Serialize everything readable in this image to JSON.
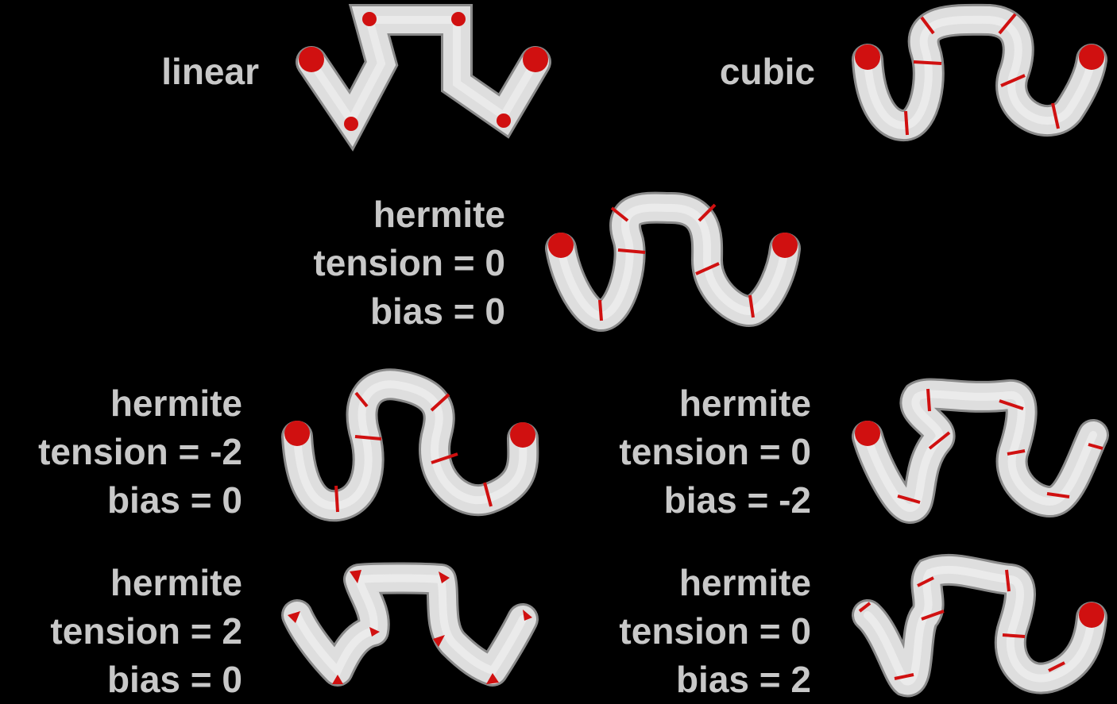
{
  "panels": [
    {
      "id": "linear",
      "lines": [
        "linear"
      ]
    },
    {
      "id": "cubic",
      "lines": [
        "cubic"
      ]
    },
    {
      "id": "hermite-t0-b0",
      "lines": [
        "hermite",
        "tension = 0",
        "bias = 0"
      ]
    },
    {
      "id": "hermite-tm2-b0",
      "lines": [
        "hermite",
        "tension = -2",
        "bias = 0"
      ]
    },
    {
      "id": "hermite-t0-bm2",
      "lines": [
        "hermite",
        "tension = 0",
        "bias = -2"
      ]
    },
    {
      "id": "hermite-t2-b0",
      "lines": [
        "hermite",
        "tension = 2",
        "bias = 0"
      ]
    },
    {
      "id": "hermite-t0-b2",
      "lines": [
        "hermite",
        "tension = 0",
        "bias = 2"
      ]
    }
  ],
  "colors": {
    "background": "#000000",
    "label": "#c8c8c8",
    "tube": "#dedede",
    "tube_shade": "#9a9a9a",
    "marker": "#d01010"
  }
}
